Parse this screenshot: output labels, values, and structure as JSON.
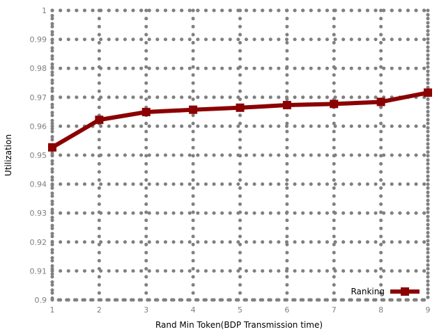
{
  "chart_data": {
    "type": "line",
    "title": "",
    "xlabel": "Rand Min Token(BDP Transmission time)",
    "ylabel": "Utilization",
    "x": [
      1,
      2,
      3,
      4,
      5,
      6,
      7,
      8,
      9
    ],
    "xlim": [
      1,
      9
    ],
    "ylim": [
      0.9,
      1
    ],
    "xticks": [
      "1",
      "2",
      "3",
      "4",
      "5",
      "6",
      "7",
      "8",
      "9"
    ],
    "yticks": [
      "0.9",
      "0.91",
      "0.92",
      "0.93",
      "0.94",
      "0.95",
      "0.96",
      "0.97",
      "0.98",
      "0.99",
      "1"
    ],
    "grid": true,
    "legend_position": "bottom-right",
    "series": [
      {
        "name": "Ranking",
        "color": "#8b0000",
        "marker": "square",
        "values": [
          0.9527,
          0.9622,
          0.9649,
          0.9657,
          0.9664,
          0.9673,
          0.9677,
          0.9684,
          0.9716
        ]
      }
    ]
  }
}
